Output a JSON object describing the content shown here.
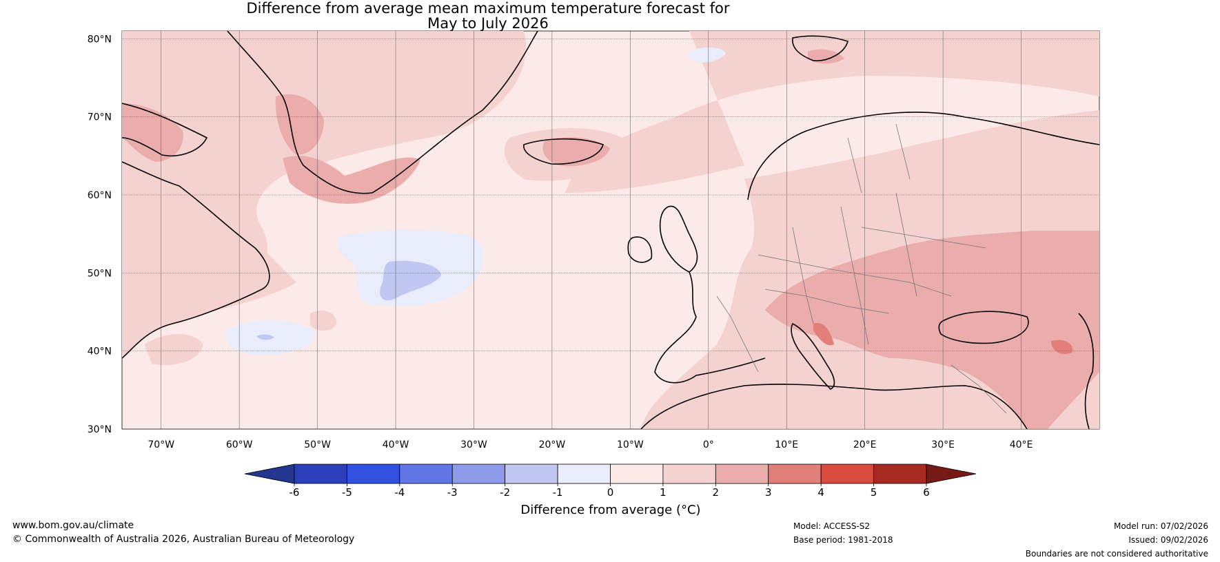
{
  "title": {
    "line1": "Difference from average mean maximum temperature forecast for",
    "line2": "May to July 2026"
  },
  "map": {
    "lat_labels": [
      "80°N",
      "70°N",
      "60°N",
      "50°N",
      "40°N",
      "30°N"
    ],
    "lon_labels": [
      "70°W",
      "60°W",
      "50°W",
      "40°W",
      "30°W",
      "20°W",
      "10°W",
      "0°",
      "10°E",
      "20°E",
      "30°E",
      "40°E"
    ],
    "lat_range": [
      30,
      81
    ],
    "lon_range": [
      -75,
      50
    ]
  },
  "legend": {
    "title": "Difference from average (°C)",
    "ticks": [
      "-6",
      "-5",
      "-4",
      "-3",
      "-2",
      "-1",
      "0",
      "1",
      "2",
      "3",
      "4",
      "5",
      "6"
    ],
    "colors": [
      "#22368f",
      "#2a3fb8",
      "#3250e0",
      "#6176e6",
      "#8c9ae8",
      "#c0c7f0",
      "#e9ecfb",
      "#fbeae8",
      "#f3d2d0",
      "#eaadab",
      "#e27f79",
      "#d94a3f",
      "#a72a22",
      "#761a16"
    ]
  },
  "footer": {
    "website": "www.bom.gov.au/climate",
    "copyright": "© Commonwealth of Australia 2026, Australian Bureau of Meteorology",
    "model": "Model: ACCESS-S2",
    "base_period": "Base period: 1981-2018",
    "model_run": "Model run: 07/02/2026",
    "issued": "Issued: 09/02/2026",
    "disclaimer": "Boundaries are not considered authoritative"
  }
}
